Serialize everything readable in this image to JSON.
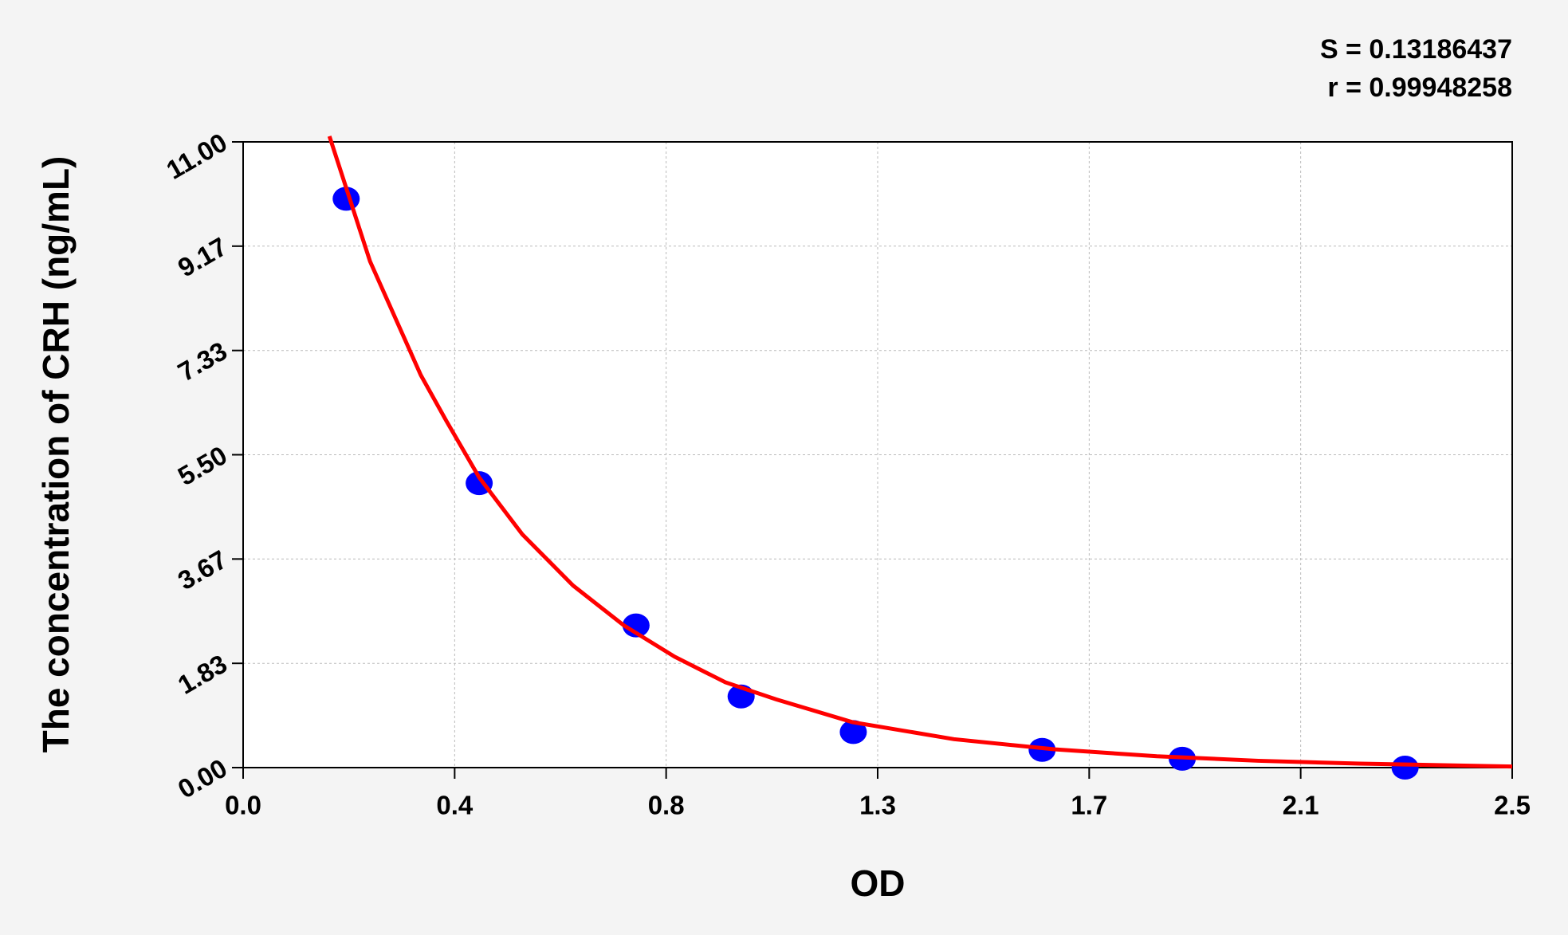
{
  "chart_data": {
    "type": "scatter",
    "annotations": [
      "S = 0.13186437",
      "r = 0.99948258"
    ],
    "xlabel": "OD",
    "ylabel": "The concentration of CRH (ng/mL)",
    "series": [
      {
        "type": "scatter",
        "color": "#0000ff",
        "x": [
          0.203,
          0.465,
          0.774,
          0.981,
          1.202,
          1.574,
          1.85,
          2.289
        ],
        "values": [
          10,
          5,
          2.5,
          1.25,
          0.625,
          0.312,
          0.156,
          0
        ]
      },
      {
        "type": "line",
        "color": "#ff0000",
        "x": [
          0.17,
          0.25,
          0.3,
          0.35,
          0.4,
          0.465,
          0.55,
          0.65,
          0.75,
          0.85,
          0.95,
          1.05,
          1.2,
          1.4,
          1.6,
          1.8,
          2.0,
          2.2,
          2.5
        ],
        "values": [
          11.1,
          8.9,
          7.9,
          6.9,
          6.1,
          5.1,
          4.1,
          3.2,
          2.5,
          1.95,
          1.5,
          1.2,
          0.8,
          0.5,
          0.32,
          0.2,
          0.12,
          0.07,
          0.02
        ]
      }
    ],
    "xlim": [
      0,
      2.5
    ],
    "ylim": [
      0,
      11
    ],
    "xticks": [
      {
        "value": 0,
        "label": "0.0"
      },
      {
        "value": 0.4167,
        "label": "0.4"
      },
      {
        "value": 0.8333,
        "label": "0.8"
      },
      {
        "value": 1.25,
        "label": "1.3"
      },
      {
        "value": 1.6667,
        "label": "1.7"
      },
      {
        "value": 2.0833,
        "label": "2.1"
      },
      2.5
    ],
    "yticks": [
      {
        "value": 0,
        "label": "0.00"
      },
      {
        "value": 1.833,
        "label": "1.83"
      },
      {
        "value": 3.667,
        "label": "3.67"
      },
      {
        "value": 5.5,
        "label": "5.50"
      },
      {
        "value": 7.333,
        "label": "7.33"
      },
      {
        "value": 9.167,
        "label": "9.17"
      },
      {
        "value": 11,
        "label": "11.00"
      }
    ],
    "grid": true
  }
}
